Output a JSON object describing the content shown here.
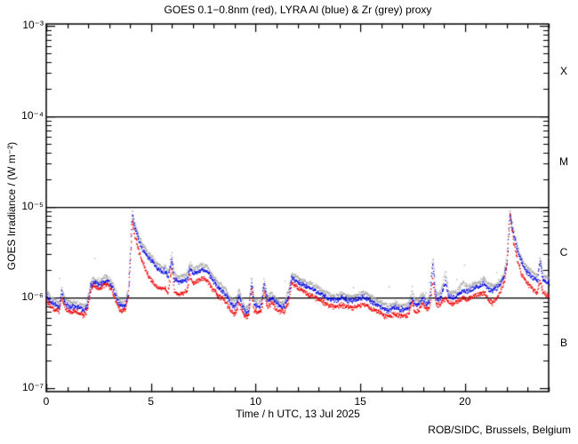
{
  "title": "GOES 0.1−0.8nm (red), LYRA Al (blue) & Zr (grey) proxy",
  "credit": "ROB/SIDC, Brussels, Belgium",
  "axes": {
    "x_label": "Time / h UTC, 13 Jul 2025",
    "y_label": "GOES Irradiance / (W m⁻²)",
    "x_tick_labels": [
      "0",
      "5",
      "10",
      "15",
      "20"
    ],
    "x_tick_hours": [
      0,
      5,
      10,
      15,
      20
    ],
    "y_tick_labels": [
      "10⁻³",
      "10⁻⁴",
      "10⁻⁵",
      "10⁻⁶",
      "10⁻⁷"
    ],
    "y_tick_exponents": [
      -3,
      -4,
      -5,
      -6,
      -7
    ],
    "flare_class_labels": [
      "X",
      "M",
      "C",
      "B"
    ]
  },
  "colors": {
    "background": "#ffffff",
    "axis": "#000000",
    "goes_red": "#ee0000",
    "lyra_al_blue": "#0000dd",
    "lyra_zr_grey": "#a8a8a8"
  },
  "chart_data": {
    "type": "scatter",
    "title": "GOES 0.1−0.8nm (red), LYRA Al (blue) & Zr (grey) proxy",
    "xlabel": "Time / h UTC, 13 Jul 2025",
    "ylabel": "GOES Irradiance / (W m⁻²)",
    "xlim": [
      0,
      24
    ],
    "ylim": [
      1e-07,
      0.001
    ],
    "y_scale": "log",
    "grid": false,
    "legend": "none (series identified by colour in title)",
    "hlines_at": [
      0.0001,
      1e-05,
      1e-06
    ],
    "flare_class_bands": {
      "X": [
        0.0001,
        0.001
      ],
      "M": [
        1e-05,
        0.0001
      ],
      "C": [
        1e-06,
        1e-05
      ],
      "B": [
        1e-07,
        1e-06
      ]
    },
    "values_scale": 1e-06,
    "values_unit": "W m^-2 (stored values are multiples of 1e-6)",
    "x_hours": [
      0.0,
      0.2,
      0.45,
      0.6,
      0.72,
      0.85,
      1.0,
      1.2,
      1.4,
      1.6,
      1.8,
      1.95,
      2.1,
      2.25,
      2.4,
      2.55,
      2.7,
      2.85,
      3.0,
      3.15,
      3.3,
      3.45,
      3.6,
      3.75,
      3.9,
      4.0,
      4.08,
      4.2,
      4.35,
      4.5,
      4.7,
      4.9,
      5.1,
      5.3,
      5.5,
      5.65,
      5.8,
      5.97,
      6.1,
      6.3,
      6.5,
      6.7,
      6.83,
      7.0,
      7.2,
      7.4,
      7.6,
      7.8,
      8.0,
      8.2,
      8.4,
      8.6,
      8.8,
      9.0,
      9.2,
      9.35,
      9.5,
      9.65,
      9.78,
      9.9,
      10.1,
      10.25,
      10.38,
      10.55,
      10.75,
      10.95,
      11.15,
      11.35,
      11.55,
      11.7,
      11.9,
      12.1,
      12.35,
      12.6,
      12.85,
      13.1,
      13.35,
      13.6,
      13.85,
      14.1,
      14.35,
      14.6,
      14.85,
      15.1,
      15.35,
      15.6,
      15.85,
      16.1,
      16.35,
      16.6,
      16.85,
      17.1,
      17.3,
      17.45,
      17.6,
      17.8,
      17.95,
      18.15,
      18.3,
      18.44,
      18.6,
      18.8,
      19.05,
      19.2,
      19.4,
      19.6,
      19.9,
      20.1,
      20.4,
      20.7,
      20.9,
      21.1,
      21.3,
      21.5,
      21.7,
      21.85,
      22.0,
      22.12,
      22.3,
      22.5,
      22.7,
      22.9,
      23.1,
      23.3,
      23.45,
      23.56,
      23.7,
      23.85,
      24.0
    ],
    "series": [
      {
        "name": "LYRA Zr proxy",
        "color_key": "lyra_zr_grey",
        "values": [
          1.18,
          1.0,
          0.92,
          0.9,
          1.3,
          1.0,
          0.92,
          0.89,
          0.9,
          0.85,
          0.81,
          0.95,
          1.5,
          1.68,
          1.6,
          1.55,
          1.68,
          1.74,
          1.62,
          1.46,
          1.18,
          0.95,
          0.9,
          0.93,
          1.25,
          3.4,
          9.2,
          6.7,
          5.2,
          4.3,
          3.5,
          3.0,
          2.7,
          2.35,
          2.2,
          2.25,
          1.9,
          3.0,
          1.8,
          1.7,
          1.75,
          1.8,
          2.4,
          2.1,
          2.2,
          2.3,
          2.25,
          1.95,
          1.7,
          1.45,
          1.35,
          1.2,
          0.95,
          0.87,
          1.25,
          0.9,
          0.78,
          0.81,
          1.7,
          0.95,
          0.9,
          0.92,
          1.57,
          1.03,
          1.14,
          0.99,
          0.9,
          0.9,
          1.18,
          1.85,
          1.74,
          1.62,
          1.51,
          1.43,
          1.34,
          1.25,
          1.14,
          1.06,
          1.06,
          1.12,
          1.06,
          1.04,
          1.09,
          1.15,
          1.09,
          0.99,
          0.94,
          0.85,
          0.82,
          0.88,
          0.84,
          0.83,
          0.86,
          1.15,
          0.92,
          0.96,
          1.12,
          0.96,
          1.03,
          2.9,
          1.1,
          1.12,
          1.9,
          1.18,
          1.12,
          1.2,
          1.5,
          1.3,
          1.43,
          1.5,
          1.65,
          1.4,
          1.35,
          1.45,
          1.6,
          1.9,
          3.0,
          9.3,
          5.6,
          3.6,
          2.7,
          2.24,
          2.0,
          1.85,
          1.74,
          2.8,
          1.8,
          1.68,
          1.62
        ]
      },
      {
        "name": "LYRA Al proxy",
        "color_key": "lyra_al_blue",
        "values": [
          1.05,
          0.9,
          0.82,
          0.8,
          1.15,
          0.9,
          0.82,
          0.79,
          0.8,
          0.76,
          0.72,
          0.85,
          1.35,
          1.5,
          1.42,
          1.38,
          1.5,
          1.55,
          1.45,
          1.3,
          1.05,
          0.85,
          0.8,
          0.83,
          1.1,
          3.0,
          8.2,
          6.0,
          4.6,
          3.8,
          3.1,
          2.7,
          2.4,
          2.1,
          1.95,
          2.0,
          1.7,
          2.7,
          1.6,
          1.5,
          1.55,
          1.6,
          2.1,
          1.85,
          1.95,
          2.05,
          2.0,
          1.75,
          1.5,
          1.3,
          1.2,
          1.05,
          0.85,
          0.78,
          1.05,
          0.8,
          0.7,
          0.72,
          1.5,
          0.85,
          0.8,
          0.82,
          1.4,
          0.92,
          1.02,
          0.88,
          0.8,
          0.8,
          1.05,
          1.65,
          1.55,
          1.45,
          1.35,
          1.28,
          1.2,
          1.12,
          1.02,
          0.95,
          0.95,
          1.0,
          0.95,
          0.93,
          0.97,
          1.03,
          0.97,
          0.88,
          0.84,
          0.76,
          0.73,
          0.79,
          0.75,
          0.74,
          0.77,
          1.0,
          0.82,
          0.86,
          1.0,
          0.86,
          0.92,
          2.4,
          0.98,
          1.0,
          1.5,
          1.05,
          1.0,
          1.08,
          1.2,
          1.15,
          1.28,
          1.35,
          1.45,
          1.25,
          1.2,
          1.3,
          1.45,
          1.7,
          2.6,
          8.8,
          5.0,
          3.2,
          2.4,
          2.0,
          1.8,
          1.65,
          1.55,
          2.5,
          1.6,
          1.5,
          1.45
        ]
      },
      {
        "name": "GOES 0.1-0.8nm",
        "color_key": "goes_red",
        "values": [
          0.92,
          0.8,
          0.73,
          0.72,
          1.0,
          0.8,
          0.73,
          0.7,
          0.71,
          0.67,
          0.64,
          0.76,
          1.2,
          1.38,
          1.3,
          1.26,
          1.38,
          1.42,
          1.32,
          1.16,
          0.92,
          0.76,
          0.72,
          0.75,
          1.0,
          2.8,
          7.4,
          5.0,
          3.6,
          2.8,
          2.1,
          1.7,
          1.45,
          1.3,
          1.25,
          1.3,
          1.15,
          2.2,
          1.15,
          1.1,
          1.15,
          1.2,
          1.8,
          1.45,
          1.55,
          1.65,
          1.6,
          1.4,
          1.2,
          1.05,
          0.97,
          0.86,
          0.72,
          0.66,
          0.9,
          0.7,
          0.62,
          0.64,
          1.25,
          0.74,
          0.7,
          0.72,
          1.15,
          0.8,
          0.88,
          0.77,
          0.7,
          0.7,
          0.92,
          1.45,
          1.35,
          1.25,
          1.15,
          1.08,
          1.0,
          0.94,
          0.86,
          0.8,
          0.8,
          0.84,
          0.8,
          0.78,
          0.81,
          0.86,
          0.81,
          0.74,
          0.7,
          0.64,
          0.62,
          0.67,
          0.64,
          0.63,
          0.66,
          0.9,
          0.7,
          0.73,
          0.88,
          0.74,
          0.79,
          1.7,
          0.83,
          0.85,
          1.0,
          0.9,
          0.86,
          0.92,
          1.0,
          0.95,
          1.05,
          1.1,
          1.15,
          0.95,
          0.88,
          1.0,
          1.2,
          1.5,
          2.4,
          8.6,
          4.2,
          2.5,
          1.8,
          1.5,
          1.35,
          1.22,
          1.12,
          1.6,
          1.15,
          1.1,
          1.05
        ]
      }
    ]
  }
}
